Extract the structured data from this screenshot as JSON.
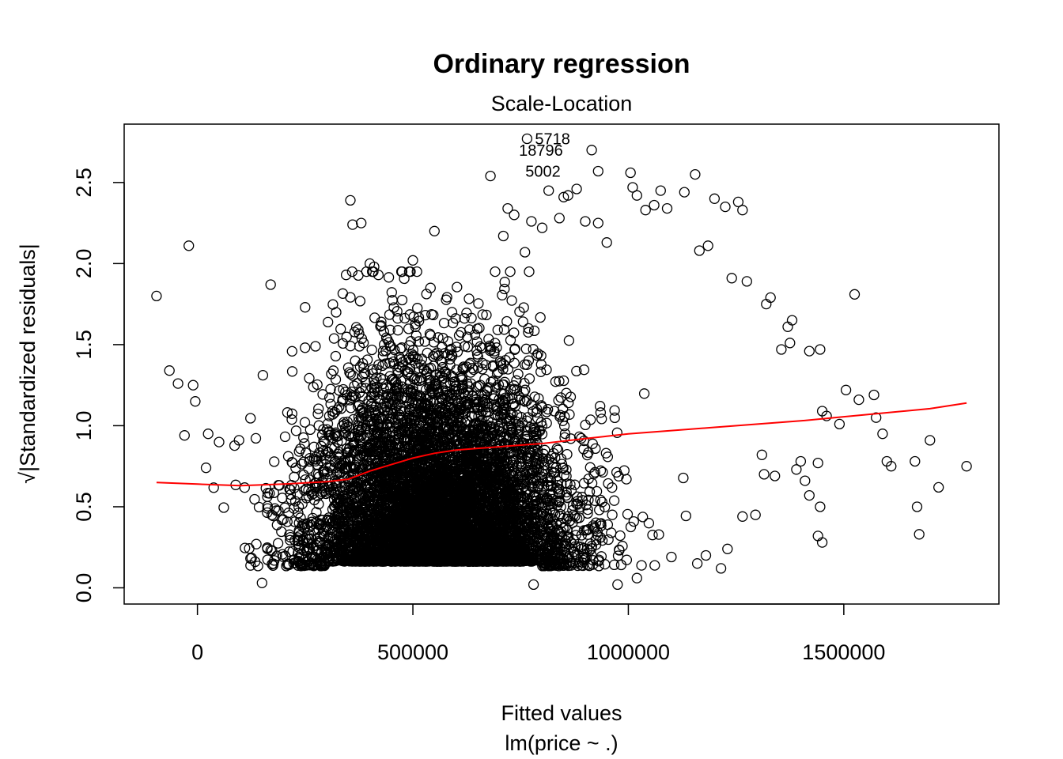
{
  "chart_data": {
    "type": "scatter",
    "title": "Ordinary regression",
    "subtitle": "Scale-Location",
    "xlabel": "Fitted values",
    "xlabel_sub": "lm(price ~ .)",
    "ylabel": "√|Standardized residuals|",
    "xlim": [
      -170000,
      1860000
    ],
    "ylim": [
      -0.1,
      2.86
    ],
    "x_ticks": [
      0,
      500000,
      1000000,
      1500000
    ],
    "x_tick_labels": [
      "0",
      "500000",
      "1000000",
      "1500000"
    ],
    "y_ticks": [
      0.0,
      0.5,
      1.0,
      1.5,
      2.0,
      2.5
    ],
    "y_tick_labels": [
      "0.0",
      "0.5",
      "1.0",
      "1.5",
      "2.0",
      "2.5"
    ],
    "grid": false,
    "legend": "none",
    "colors": {
      "points": "#000000",
      "smooth": "#ff0000"
    },
    "labeled_points": [
      {
        "label": "5718",
        "x": 765000,
        "y": 2.77
      },
      {
        "label": "18796",
        "x": 915000,
        "y": 2.7
      },
      {
        "label": "5002",
        "x": 930000,
        "y": 2.57
      }
    ],
    "outliers": [
      [
        -95000,
        1.8
      ],
      [
        -20000,
        2.11
      ],
      [
        -65000,
        1.34
      ],
      [
        -45000,
        1.26
      ],
      [
        -30000,
        0.94
      ],
      [
        -10000,
        1.25
      ],
      [
        -5000,
        1.15
      ],
      [
        20000,
        0.74
      ],
      [
        25000,
        0.95
      ],
      [
        150000,
        0.03
      ],
      [
        170000,
        1.87
      ],
      [
        250000,
        1.73
      ],
      [
        345000,
        1.93
      ],
      [
        355000,
        2.39
      ],
      [
        360000,
        2.24
      ],
      [
        380000,
        2.25
      ],
      [
        400000,
        2.0
      ],
      [
        410000,
        1.98
      ],
      [
        420000,
        1.93
      ],
      [
        550000,
        2.2
      ],
      [
        500000,
        2.02
      ],
      [
        680000,
        2.54
      ],
      [
        720000,
        2.34
      ],
      [
        710000,
        2.17
      ],
      [
        735000,
        2.3
      ],
      [
        760000,
        2.07
      ],
      [
        775000,
        2.26
      ],
      [
        800000,
        2.22
      ],
      [
        815000,
        2.45
      ],
      [
        840000,
        2.28
      ],
      [
        850000,
        2.41
      ],
      [
        860000,
        2.42
      ],
      [
        880000,
        2.46
      ],
      [
        900000,
        2.26
      ],
      [
        930000,
        2.25
      ],
      [
        950000,
        2.13
      ],
      [
        1005000,
        2.56
      ],
      [
        1010000,
        2.47
      ],
      [
        1020000,
        2.42
      ],
      [
        1040000,
        2.33
      ],
      [
        1060000,
        2.36
      ],
      [
        1075000,
        2.45
      ],
      [
        1090000,
        2.34
      ],
      [
        1130000,
        2.44
      ],
      [
        1155000,
        2.55
      ],
      [
        1165000,
        2.08
      ],
      [
        1185000,
        2.11
      ],
      [
        1200000,
        2.4
      ],
      [
        1225000,
        2.35
      ],
      [
        1255000,
        2.38
      ],
      [
        1265000,
        2.33
      ],
      [
        1240000,
        1.91
      ],
      [
        1275000,
        1.89
      ],
      [
        1320000,
        1.75
      ],
      [
        1330000,
        1.79
      ],
      [
        1380000,
        1.65
      ],
      [
        1370000,
        1.61
      ],
      [
        1355000,
        1.47
      ],
      [
        1375000,
        1.51
      ],
      [
        1420000,
        1.46
      ],
      [
        1445000,
        1.47
      ],
      [
        1450000,
        1.09
      ],
      [
        1460000,
        1.06
      ],
      [
        1490000,
        1.01
      ],
      [
        1505000,
        1.22
      ],
      [
        1525000,
        1.81
      ],
      [
        1535000,
        1.16
      ],
      [
        1570000,
        1.19
      ],
      [
        1575000,
        1.05
      ],
      [
        1590000,
        0.95
      ],
      [
        1610000,
        0.75
      ],
      [
        1600000,
        0.78
      ],
      [
        1665000,
        0.78
      ],
      [
        1670000,
        0.5
      ],
      [
        1675000,
        0.33
      ],
      [
        1700000,
        0.91
      ],
      [
        1720000,
        0.62
      ],
      [
        1785000,
        0.75
      ],
      [
        1400000,
        0.78
      ],
      [
        1410000,
        0.66
      ],
      [
        1420000,
        0.57
      ],
      [
        1440000,
        0.77
      ],
      [
        1445000,
        0.5
      ],
      [
        1440000,
        0.32
      ],
      [
        1450000,
        0.28
      ],
      [
        1390000,
        0.73
      ],
      [
        1340000,
        0.69
      ],
      [
        1310000,
        0.82
      ],
      [
        1315000,
        0.7
      ],
      [
        1295000,
        0.45
      ],
      [
        1265000,
        0.44
      ],
      [
        1230000,
        0.24
      ],
      [
        1215000,
        0.12
      ],
      [
        1180000,
        0.2
      ],
      [
        1160000,
        0.15
      ],
      [
        1100000,
        0.19
      ],
      [
        1020000,
        0.06
      ],
      [
        975000,
        0.02
      ],
      [
        780000,
        0.02
      ]
    ],
    "cloud": {
      "x_center": 560000,
      "x_spread": 300000,
      "n_points": 7000,
      "seed": 12345
    },
    "smooth_line": {
      "x": [
        -95000,
        0,
        100000,
        200000,
        300000,
        350000,
        400000,
        450000,
        500000,
        550000,
        600000,
        650000,
        700000,
        750000,
        800000,
        850000,
        900000,
        950000,
        1000000,
        1100000,
        1200000,
        1300000,
        1400000,
        1500000,
        1600000,
        1700000,
        1785000
      ],
      "y": [
        0.65,
        0.64,
        0.63,
        0.64,
        0.655,
        0.67,
        0.72,
        0.76,
        0.8,
        0.83,
        0.85,
        0.86,
        0.87,
        0.88,
        0.89,
        0.905,
        0.92,
        0.935,
        0.95,
        0.97,
        0.99,
        1.01,
        1.03,
        1.055,
        1.08,
        1.105,
        1.14
      ]
    }
  }
}
